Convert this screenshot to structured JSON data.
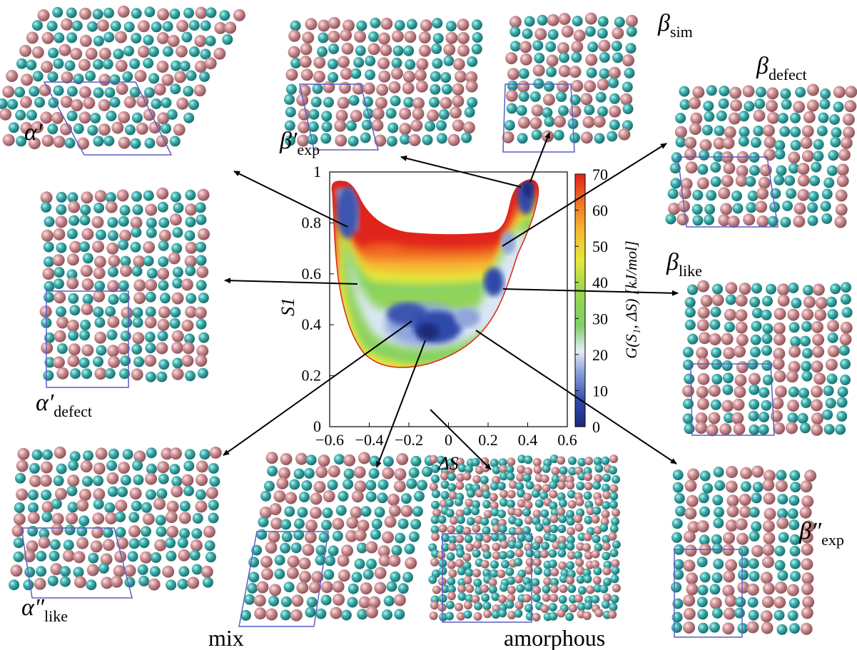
{
  "figure": {
    "panels": [
      {
        "id": "alpha-prime",
        "label": "α′",
        "sub": ""
      },
      {
        "id": "beta-exp-prime",
        "label": "β′",
        "sub": "exp"
      },
      {
        "id": "beta-sim",
        "label": "β",
        "sub": "sim"
      },
      {
        "id": "beta-defect",
        "label": "β",
        "sub": "defect"
      },
      {
        "id": "alpha-defect",
        "label": "α′",
        "sub": "defect"
      },
      {
        "id": "beta-like",
        "label": "β",
        "sub": "like"
      },
      {
        "id": "alpha-like",
        "label": "α″",
        "sub": "like"
      },
      {
        "id": "mix",
        "label": "mix",
        "sub": ""
      },
      {
        "id": "amorphous",
        "label": "amorphous",
        "sub": ""
      },
      {
        "id": "beta-exp-dprime",
        "label": "β″",
        "sub": "exp"
      }
    ],
    "colors": {
      "atom_a": "#3aa6a6",
      "atom_b": "#c98a8e",
      "cell": "#5a5fc4"
    }
  },
  "chart_data": {
    "type": "heatmap",
    "x_axis": {
      "label": "ΔS",
      "range": [
        -0.6,
        0.6
      ],
      "ticks": [
        "−0.6",
        "−0.4",
        "−0.2",
        "0",
        "0.2",
        "0.4",
        "0.6"
      ]
    },
    "y_axis": {
      "label": "S1",
      "range": [
        0,
        1
      ],
      "ticks": [
        "0",
        "0.2",
        "0.4",
        "0.6",
        "0.8",
        "1"
      ]
    },
    "colorbar": {
      "label": "G(S1, ΔS) [kJ/mol]",
      "range": [
        0,
        70
      ],
      "ticks": [
        "0",
        "10",
        "20",
        "30",
        "40",
        "50",
        "60",
        "70"
      ]
    },
    "minima": [
      {
        "name": "α′",
        "dS": -0.45,
        "S1": 0.85,
        "G": 10
      },
      {
        "name": "β_sim",
        "dS": 0.4,
        "S1": 0.95,
        "G": 0
      },
      {
        "name": "β_defect",
        "dS": 0.3,
        "S1": 0.72,
        "G": 20
      },
      {
        "name": "β_like",
        "dS": 0.28,
        "S1": 0.55,
        "G": 5
      },
      {
        "name": "α′_defect",
        "dS": -0.38,
        "S1": 0.62,
        "G": 20
      },
      {
        "name": "mix",
        "dS": -0.12,
        "S1": 0.42,
        "G": 8
      },
      {
        "name": "α″_like",
        "dS": -0.08,
        "S1": 0.36,
        "G": 5
      },
      {
        "name": "β″_exp",
        "dS": 0.22,
        "S1": 0.38,
        "G": 28
      }
    ]
  }
}
